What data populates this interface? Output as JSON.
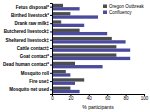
{
  "chart_data": {
    "type": "bar",
    "orientation": "horizontal",
    "x_label": "% participants",
    "categories": [
      "Fetus disposal*",
      "Birthed livestock*",
      "Drank raw milk‡",
      "Butchered livestock‡",
      "Sheltered livestock‡",
      "Cattle contact‡",
      "Goat contact*",
      "Dead human contact*",
      "Mosquito roll",
      "Fire use‡",
      "Mosquito net used"
    ],
    "series": [
      {
        "name": "Oregon Outbreak",
        "color": "#4d4d4d",
        "values": [
          12,
          20,
          10,
          30,
          65,
          70,
          70,
          25,
          15,
          35,
          20
        ]
      },
      {
        "name": "Confluency",
        "color": "#4b4b9e",
        "values": [
          30,
          50,
          35,
          60,
          80,
          85,
          85,
          55,
          20,
          25,
          30
        ]
      }
    ],
    "xlim": [
      0,
      100
    ],
    "xticks": [
      0,
      20,
      40,
      60,
      80,
      100
    ],
    "legend": "upper right",
    "grid": false
  }
}
